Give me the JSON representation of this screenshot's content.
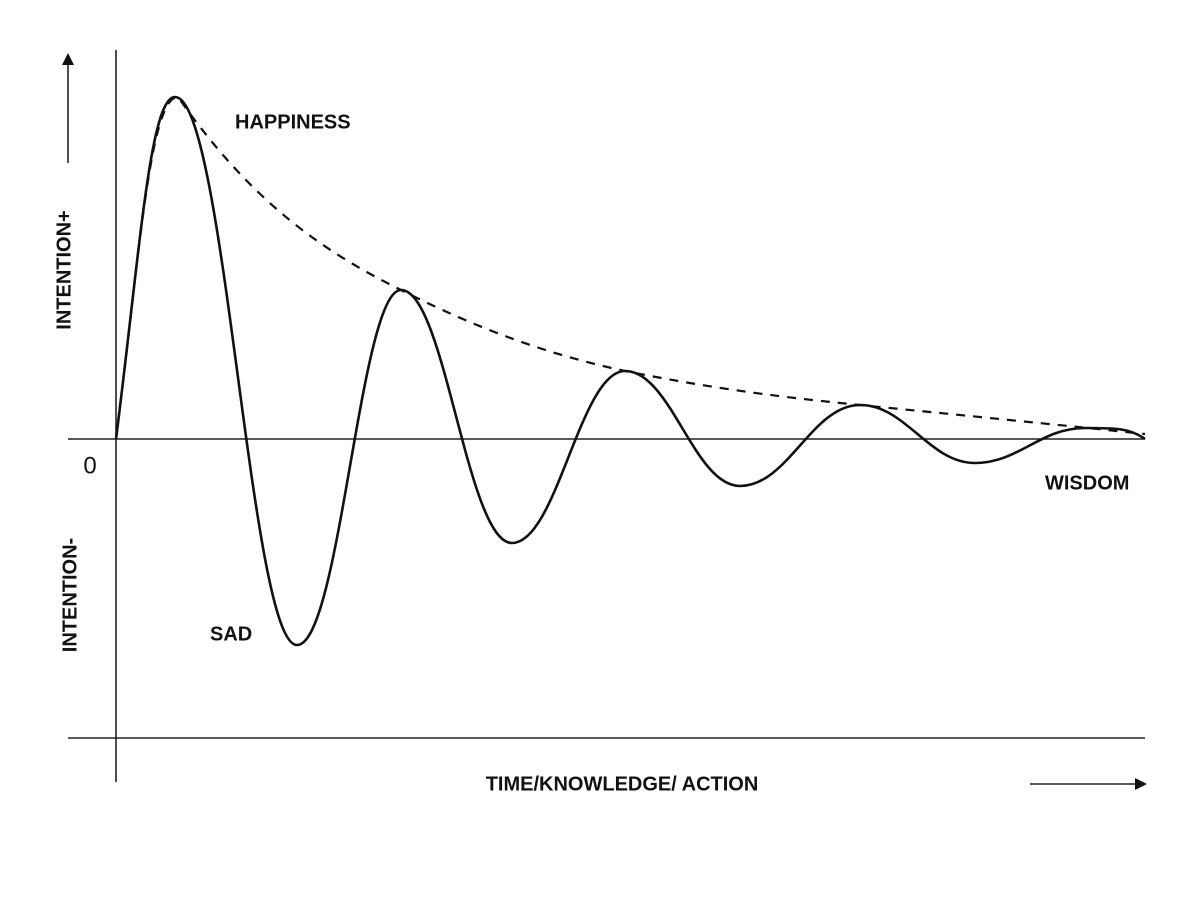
{
  "labels": {
    "y_positive": "INTENTION+",
    "y_negative": "INTENTION-",
    "origin": "0",
    "happiness": "HAPPINESS",
    "sad": "SAD",
    "wisdom": "WISDOM",
    "x_axis": "TIME/KNOWLEDGE/ ACTION"
  }
}
